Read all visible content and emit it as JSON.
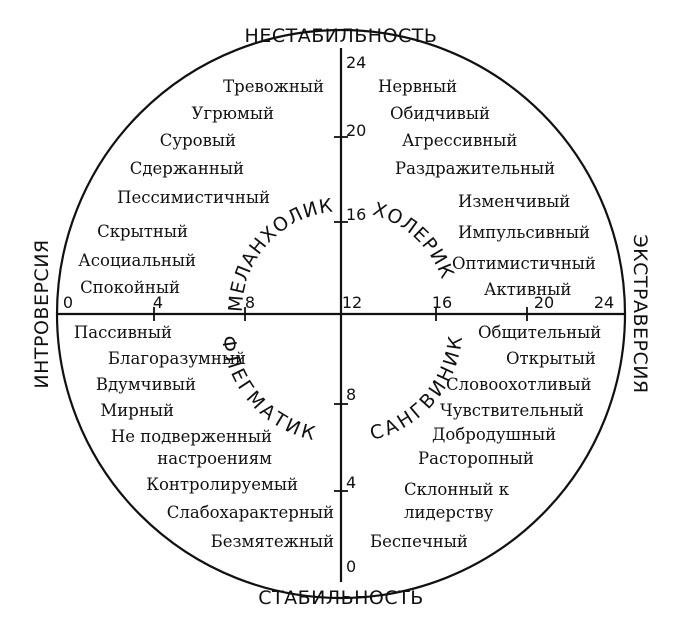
{
  "axes": {
    "top": "НЕСТАБИЛЬНОСТЬ",
    "bottom": "СТАБИЛЬНОСТЬ",
    "left": "ИНТРОВЕРСИЯ",
    "right": "ЭКСТРАВЕРСИЯ"
  },
  "ticks": {
    "horizontal": [
      "0",
      "4",
      "8",
      "12",
      "16",
      "20",
      "24"
    ],
    "vertical": [
      "24",
      "20",
      "16",
      "8",
      "4",
      "0"
    ]
  },
  "temperaments": {
    "melancholic": "МЕЛАНХОЛИК",
    "choleric": "ХОЛЕРИК",
    "phlegmatic": "ФЛЕГМАТИК",
    "sanguine": "САНГВИНИК"
  },
  "traits": {
    "melancholic": [
      "Тревожный",
      "Угрюмый",
      "Суровый",
      "Сдержанный",
      "Пессимистичный",
      "Скрытный",
      "Асоциальный",
      "Спокойный"
    ],
    "choleric": [
      "Нервный",
      "Обидчивый",
      "Агрессивный",
      "Раздражительный",
      "Изменчивый",
      "Импульсивный",
      "Оптимистичный",
      "Активный"
    ],
    "phlegmatic": [
      "Пассивный",
      "Благоразумный",
      "Вдумчивый",
      "Мирный",
      "Не подверженный",
      "настроениям",
      "Контролируемый",
      "Слабохарактерный",
      "Безмятежный"
    ],
    "sanguine": [
      "Общительный",
      "Открытый",
      "Словоохотливый",
      "Чувствительный",
      "Добродушный",
      "Расторопный",
      "Склонный к",
      "лидерству",
      "Беспечный"
    ]
  }
}
